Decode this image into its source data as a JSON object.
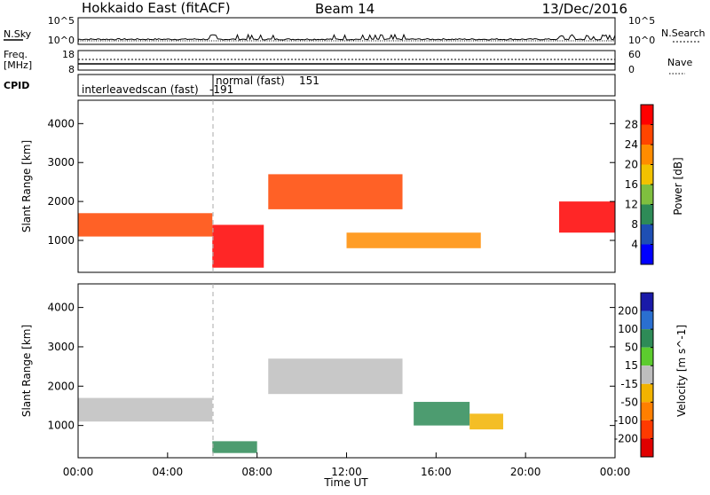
{
  "header": {
    "title": "Hokkaido East (fitACF)",
    "beam": "Beam 14",
    "date": "13/Dec/2016"
  },
  "top_panels": {
    "nsky_label": "N.Sky",
    "nsearch_label": "N.Search",
    "nsky_ticks": [
      "10^5",
      "10^0"
    ],
    "freq_label_1": "Freq.",
    "freq_label_2": "[MHz]",
    "freq_ticks": [
      "18",
      "8"
    ],
    "nave_label": "Nave",
    "nave_ticks": [
      "60",
      "0"
    ],
    "cpid_label": "CPID",
    "cpid_modes": [
      {
        "name": "interleavedscan (fast)",
        "cpid": "-191",
        "start": "00:00"
      },
      {
        "name": "normal (fast)",
        "cpid": "151",
        "start": "06:00"
      }
    ]
  },
  "chart_data": [
    {
      "type": "heatmap",
      "title": "",
      "xlabel": "",
      "ylabel": "Slant Range [km]",
      "x_range": [
        "00:00",
        "24:00"
      ],
      "ylim": [
        180,
        4600
      ],
      "y_ticks": [
        1000,
        2000,
        3000,
        4000
      ],
      "colorbar": {
        "label": "Power [dB]",
        "ticks": [
          4,
          8,
          12,
          16,
          20,
          24,
          28
        ],
        "range": [
          0,
          32
        ],
        "colors": [
          "#0000ff",
          "#1e4fb4",
          "#2e8b57",
          "#7fbf3f",
          "#f2c200",
          "#ff8c00",
          "#ff4500",
          "#ff0000"
        ]
      },
      "echo_regions": [
        {
          "t0": 0.0,
          "t1": 6.0,
          "r0": 1100,
          "r1": 1700,
          "value": 26
        },
        {
          "t0": 6.0,
          "t1": 8.3,
          "r0": 300,
          "r1": 1400,
          "value": 28
        },
        {
          "t0": 8.5,
          "t1": 14.5,
          "r0": 1800,
          "r1": 2700,
          "value": 24
        },
        {
          "t0": 12.0,
          "t1": 18.0,
          "r0": 800,
          "r1": 1200,
          "value": 20
        },
        {
          "t0": 21.5,
          "t1": 24.0,
          "r0": 1200,
          "r1": 2000,
          "value": 28
        }
      ]
    },
    {
      "type": "heatmap",
      "title": "",
      "xlabel": "Time UT",
      "ylabel": "Slant Range [km]",
      "x_range": [
        "00:00",
        "24:00"
      ],
      "x_ticks": [
        "00:00",
        "04:00",
        "08:00",
        "12:00",
        "16:00",
        "20:00",
        "00:00"
      ],
      "ylim": [
        180,
        4600
      ],
      "y_ticks": [
        1000,
        2000,
        3000,
        4000
      ],
      "colorbar": {
        "label": "Velocity [m s^-1]",
        "ticks": [
          200,
          100,
          50,
          15,
          -15,
          -50,
          -100,
          -200
        ],
        "colors": [
          "#1a1aa8",
          "#2a6fd0",
          "#2e8b57",
          "#5ccc2e",
          "#bebebe",
          "#f2b300",
          "#ff7f00",
          "#ff3a00",
          "#e00000"
        ]
      },
      "echo_regions": [
        {
          "t0": 0.0,
          "t1": 6.0,
          "r0": 1100,
          "r1": 1700,
          "value": 0
        },
        {
          "t0": 8.5,
          "t1": 14.5,
          "r0": 1800,
          "r1": 2700,
          "value": 0
        },
        {
          "t0": 15.0,
          "t1": 17.5,
          "r0": 1000,
          "r1": 1600,
          "value": 60
        },
        {
          "t0": 17.5,
          "t1": 19.0,
          "r0": 900,
          "r1": 1300,
          "value": -40
        },
        {
          "t0": 6.0,
          "t1": 8.0,
          "r0": 300,
          "r1": 600,
          "value": 60
        }
      ]
    }
  ]
}
